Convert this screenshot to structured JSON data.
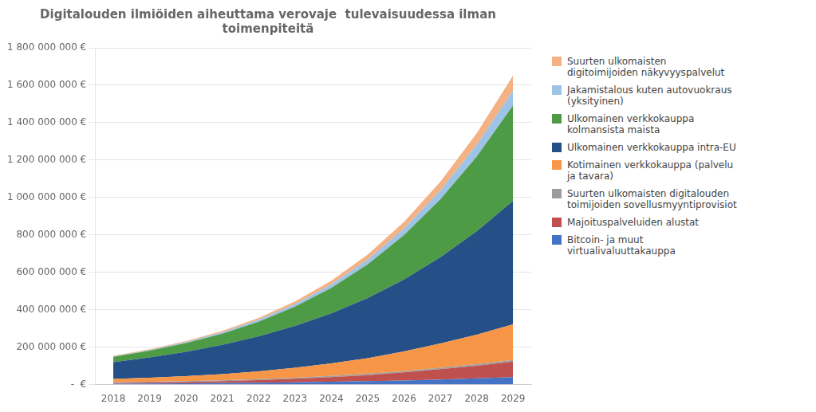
{
  "chart_data": {
    "type": "area",
    "title": "Digitalouden ilmiöiden aiheuttama verovaje  tulevaisuudessa ilman\ntoimenpiteitä",
    "x": [
      2018,
      2019,
      2020,
      2021,
      2022,
      2023,
      2024,
      2025,
      2026,
      2027,
      2028,
      2029
    ],
    "series": [
      {
        "name": "Bitcoin- ja muut\nvirtualivaluuttakauppa",
        "color": "#4472C4",
        "values": [
          5000000,
          6000000,
          7000000,
          8500000,
          10000000,
          12000000,
          15000000,
          18000000,
          22000000,
          27000000,
          33000000,
          40000000
        ]
      },
      {
        "name": "Majoituspalveluiden alustat",
        "color": "#C0504D",
        "values": [
          4000000,
          5500000,
          7500000,
          10000000,
          14000000,
          19000000,
          25000000,
          33000000,
          43000000,
          55000000,
          68000000,
          83000000
        ]
      },
      {
        "name": "Suurten ulkomaisten digitalouden\ntoimijoiden sovellusmyyntiprovisiot",
        "color": "#9C9C9C",
        "values": [
          3000000,
          3500000,
          4000000,
          4500000,
          5000000,
          5500000,
          6000000,
          6500000,
          7000000,
          7500000,
          8000000,
          8500000
        ]
      },
      {
        "name": "Kotimainen verkkokauppa (palvelu\nja tavara)",
        "color": "#F79646",
        "values": [
          18000000,
          22000000,
          27000000,
          33000000,
          42000000,
          53000000,
          67000000,
          84000000,
          105000000,
          130000000,
          158000000,
          190000000
        ]
      },
      {
        "name": "Ulkomainen verkkokauppa intra-EU",
        "color": "#244F87",
        "values": [
          90000000,
          108000000,
          130000000,
          156000000,
          187000000,
          224000000,
          268000000,
          321000000,
          385000000,
          461000000,
          552000000,
          661000000
        ]
      },
      {
        "name": "Ulkomainen verkkokauppa\nkolmansista maista",
        "color": "#4E9B46",
        "values": [
          28000000,
          36000000,
          46000000,
          60000000,
          78000000,
          103000000,
          136000000,
          180000000,
          237000000,
          310000000,
          400000000,
          510000000
        ]
      },
      {
        "name": "Jakamistalous kuten autovuokraus\n(yksityinen)",
        "color": "#9DC3E6",
        "values": [
          3000000,
          4000000,
          5500000,
          7500000,
          10000000,
          14000000,
          19000000,
          26000000,
          35000000,
          47000000,
          62000000,
          80000000
        ]
      },
      {
        "name": "Suurten ulkomaisten\ndigitoimijoiden näkyvyyspalvelut",
        "color": "#F4B183",
        "values": [
          3000000,
          4000000,
          5500000,
          7500000,
          10000000,
          14000000,
          19000000,
          26000000,
          35000000,
          47000000,
          62000000,
          80000000
        ]
      }
    ],
    "stacked": true,
    "xlim": [
      2017.5,
      2029.5
    ],
    "xticks": [
      2018,
      2019,
      2020,
      2021,
      2022,
      2023,
      2024,
      2025,
      2026,
      2027,
      2028,
      2029
    ],
    "ylim": [
      0,
      1800000000
    ],
    "yticks": [
      {
        "value": 0,
        "label": "-  €"
      },
      {
        "value": 200000000,
        "label": "200 000 000 €"
      },
      {
        "value": 400000000,
        "label": "400 000 000 €"
      },
      {
        "value": 600000000,
        "label": "600 000 000 €"
      },
      {
        "value": 800000000,
        "label": "800 000 000 €"
      },
      {
        "value": 1000000000,
        "label": "1 000 000 000 €"
      },
      {
        "value": 1200000000,
        "label": "1 200 000 000 €"
      },
      {
        "value": 1400000000,
        "label": "1 400 000 000 €"
      },
      {
        "value": 1600000000,
        "label": "1 600 000 000 €"
      },
      {
        "value": 1800000000,
        "label": "1 800 000 000 €"
      }
    ],
    "grid": "y",
    "legend": "right"
  }
}
